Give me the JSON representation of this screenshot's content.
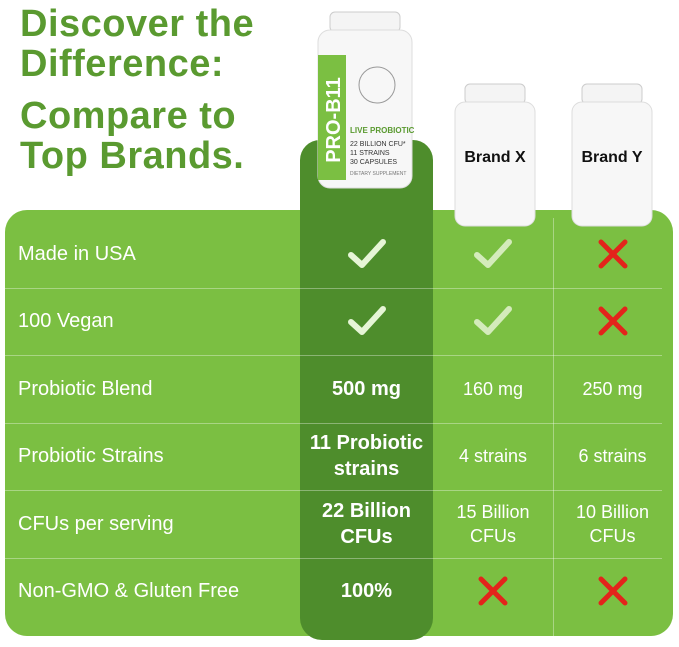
{
  "header": {
    "lines": [
      "Discover the",
      "Difference:",
      "Compare to",
      "Top Brands."
    ]
  },
  "product": {
    "name": "PRO-B11",
    "tagline": "LIVE PROBIOTIC",
    "details": [
      "22 BILLION CFU*",
      "11 STRAINS",
      "30 CAPSULES"
    ],
    "footer": "DIETARY SUPPLEMENT"
  },
  "brands": [
    "Brand X",
    "Brand Y"
  ],
  "table": {
    "rows": [
      {
        "label": "Made in USA",
        "cells": [
          true,
          true,
          false
        ]
      },
      {
        "label": "100 Vegan",
        "cells": [
          true,
          true,
          false
        ]
      },
      {
        "label": "Probiotic Blend",
        "cells": [
          "500 mg",
          "160 mg",
          "250 mg"
        ]
      },
      {
        "label": "Probiotic Strains",
        "cells": [
          "11 Probiotic strains",
          "4 strains",
          "6 strains"
        ]
      },
      {
        "label": "CFUs per serving",
        "cells": [
          "22 Billion CFUs",
          "15 Billion CFUs",
          "10 Billion CFUs"
        ]
      },
      {
        "label": "Non-GMO & Gluten Free",
        "cells": [
          "100%",
          false,
          false
        ]
      }
    ]
  }
}
